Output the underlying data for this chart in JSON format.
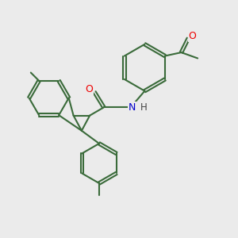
{
  "background_color": "#ebebeb",
  "bond_color": "#3a6b3a",
  "bond_width": 1.5,
  "atom_colors": {
    "O": "#ee0000",
    "N": "#0000cc",
    "H_color": "#444444"
  },
  "figsize": [
    3.0,
    3.0
  ],
  "dpi": 100
}
